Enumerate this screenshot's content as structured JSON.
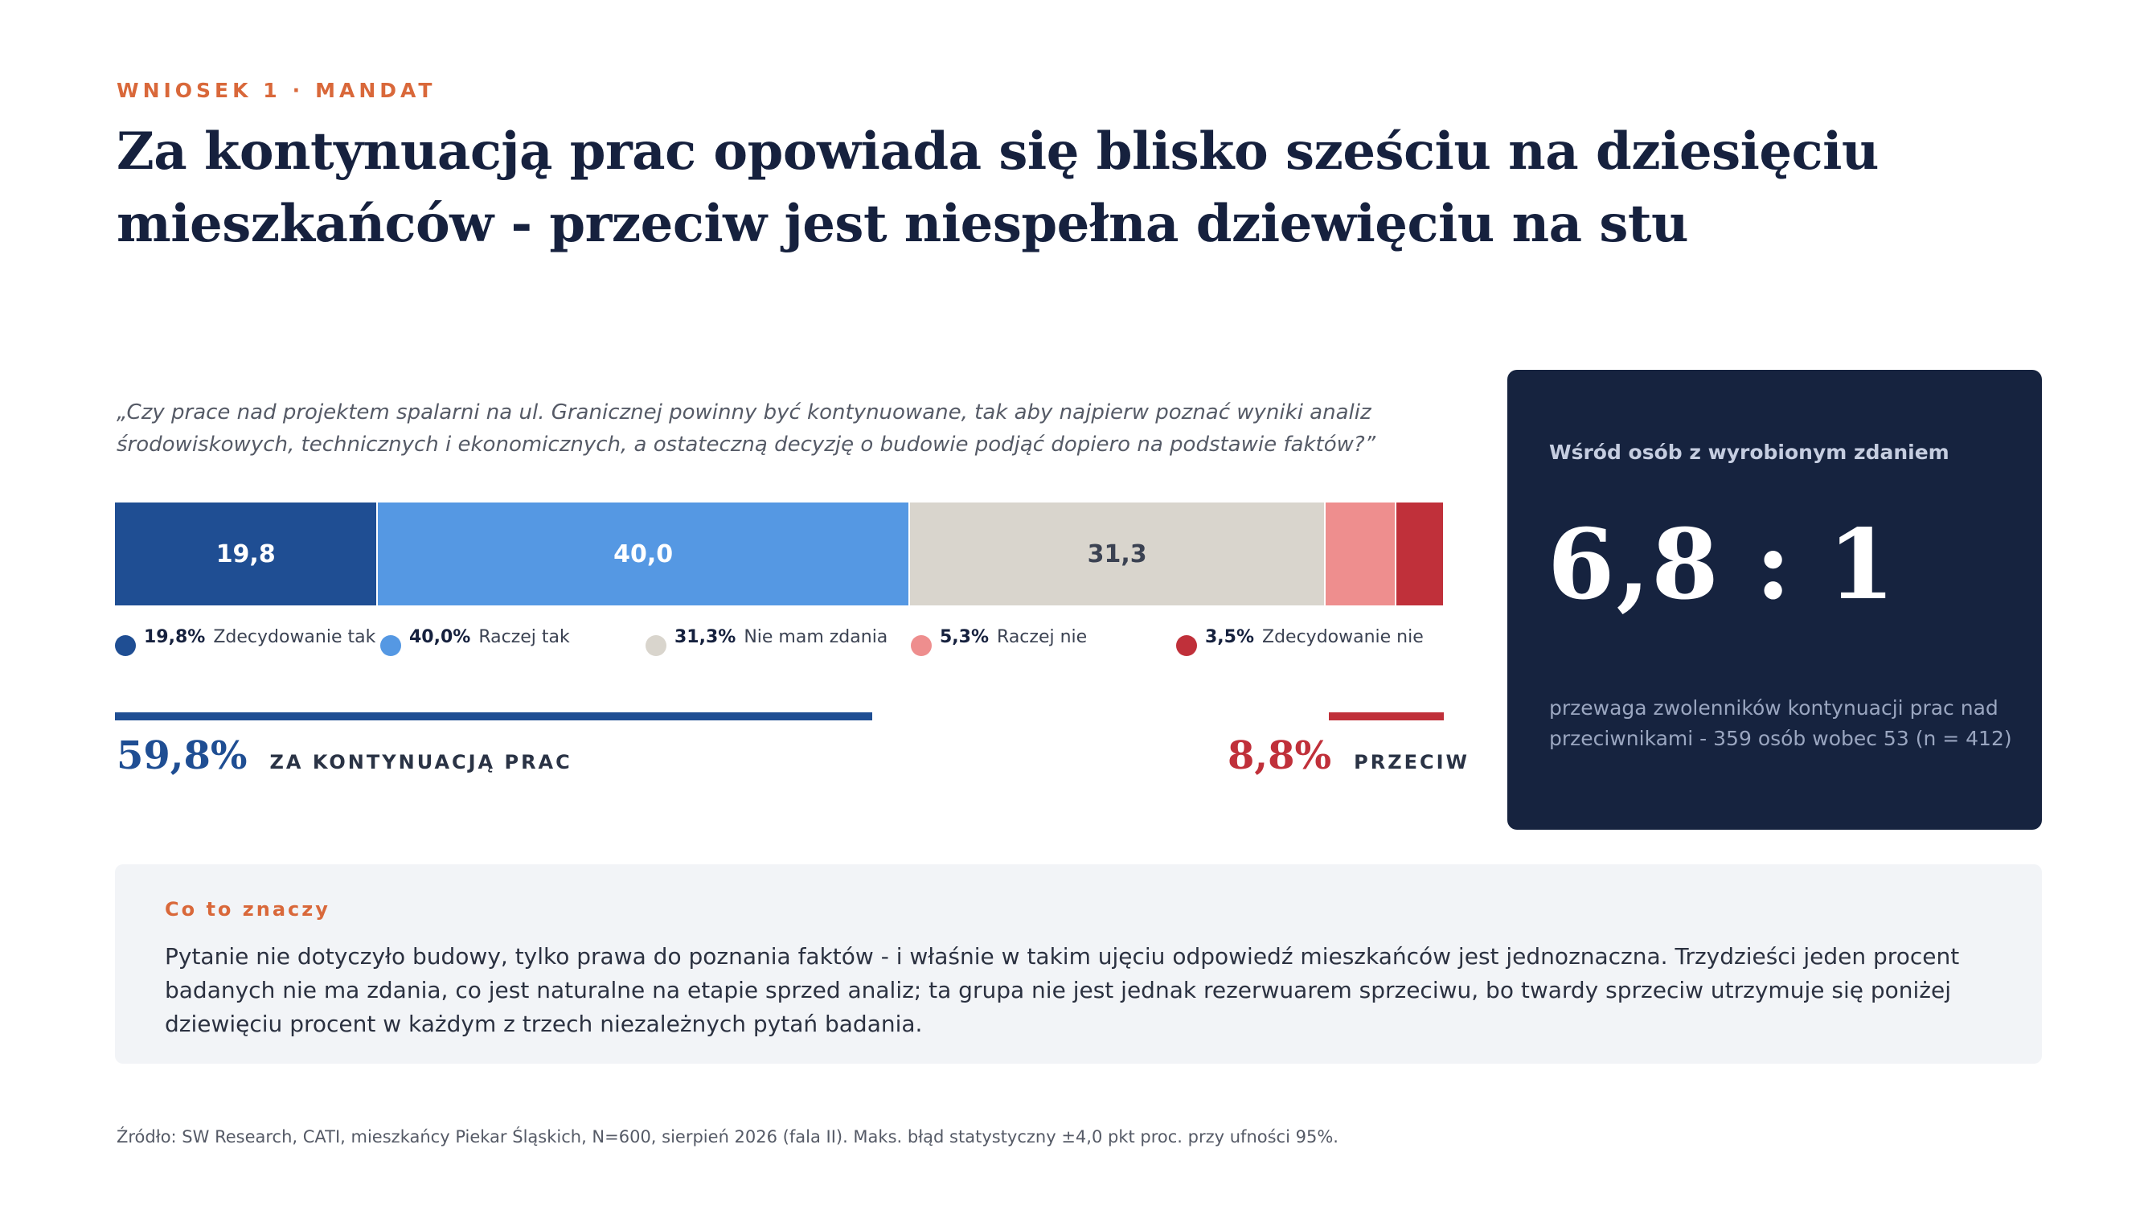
{
  "header": {
    "eyebrow_left": "WNIOSEK 1",
    "eyebrow_sep": "·",
    "eyebrow_right": "MANDAT",
    "title": "Za kontynuacją prac opowiada się blisko sześciu na dziesięciu mieszkańców - przeciw jest niespełna dziewięciu na stu"
  },
  "question": "„Czy prace nad projektem spalarni na ul. Granicznej powinny być kontynuowane, tak aby najpierw poznać wyniki analiz środowiskowych, technicznych i ekonomicznych, a ostateczną decyzję o budowie podjąć dopiero na podstawie faktów?”",
  "chart_data": {
    "type": "bar",
    "orientation": "horizontal-stacked-100",
    "categories": [
      "Zdecydowanie tak",
      "Raczej tak",
      "Nie mam zdania",
      "Raczej nie",
      "Zdecydowanie nie"
    ],
    "values": [
      19.8,
      40.0,
      31.3,
      5.3,
      3.5
    ],
    "segment_labels": [
      "19,8",
      "40,0",
      "31,3",
      "",
      ""
    ],
    "legend_values": [
      "19,8%",
      "40,0%",
      "31,3%",
      "5,3%",
      "3,5%"
    ],
    "colors": [
      "#1f4e93",
      "#5598e3",
      "#d9d5cd",
      "#ee8e8e",
      "#c0303a"
    ],
    "label_colors": [
      "#ffffff",
      "#ffffff",
      "#3b4252",
      "#ffffff",
      "#ffffff"
    ],
    "legend_position": "bottom"
  },
  "summary": {
    "for_value": "59,8%",
    "for_label": "ZA KONTYNUACJĄ PRAC",
    "for_color": "#1f4e93",
    "against_value": "8,8%",
    "against_label": "PRZECIW",
    "against_color": "#c0303a"
  },
  "panel": {
    "label": "Wśród osób z wyrobionym zdaniem",
    "ratio": "6,8 : 1",
    "note": "przewaga zwolenników kontynuacji prac nad przeciwnikami - 359 osób wobec 53 (n = 412)"
  },
  "meaning": {
    "title": "Co to znaczy",
    "text": "Pytanie nie dotyczyło budowy, tylko prawa do poznania faktów - i właśnie w takim ujęciu odpowiedź mieszkańców jest jednoznaczna. Trzydzieści jeden procent badanych nie ma zdania, co jest naturalne na etapie sprzed analiz; ta grupa nie jest jednak rezerwuarem sprzeciwu, bo twardy sprzeciw utrzymuje się poniżej dziewięciu procent w każdym z trzech niezależnych pytań badania."
  },
  "source": "Źródło: SW Research, CATI, mieszkańcy Piekar Śląskich, N=600, sierpień 2026 (fala II). Maks. błąd statystyczny ±4,0 pkt proc. przy ufności 95%."
}
